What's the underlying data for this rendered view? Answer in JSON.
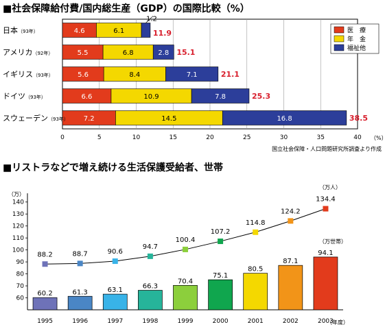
{
  "chart_data": [
    {
      "type": "bar",
      "orientation": "horizontal",
      "stacked": true,
      "title": "■社会保障給付費/国内総生産（GDP）の国際比較（%）",
      "categories": [
        {
          "name": "日本",
          "year": "（93年）"
        },
        {
          "name": "アメリカ",
          "year": "（92年）"
        },
        {
          "name": "イギリス",
          "year": "（93年）"
        },
        {
          "name": "ドイツ",
          "year": "（93年）"
        },
        {
          "name": "スウェーデン",
          "year": "（93年）"
        }
      ],
      "series": [
        {
          "name": "医　療",
          "color": "#e23b1c",
          "values": [
            4.6,
            5.5,
            5.6,
            6.6,
            7.2
          ]
        },
        {
          "name": "年　金",
          "color": "#f4d800",
          "values": [
            6.1,
            6.8,
            8.4,
            10.9,
            14.5
          ]
        },
        {
          "name": "福祉他",
          "color": "#2c3e9a",
          "values": [
            1.2,
            2.8,
            7.1,
            7.8,
            16.8
          ]
        }
      ],
      "totals": [
        11.9,
        15.1,
        21.1,
        25.3,
        38.5
      ],
      "xlim": [
        0,
        40
      ],
      "xticks": [
        0,
        5,
        10,
        15,
        20,
        25,
        30,
        35,
        40
      ],
      "xunit": "（%）",
      "legend_position": "top-right",
      "source": "国立社会保障・人口問題研究所調査より作成"
    },
    {
      "type": "bar+line",
      "title": "■リストラなどで増え続ける生活保護受給者、世帯",
      "categories": [
        "1995",
        "1996",
        "1997",
        "1998",
        "1999",
        "2000",
        "2001",
        "2002",
        "2003"
      ],
      "x_unit": "（年度）",
      "y_unit": "（万）",
      "ylim": [
        50,
        145
      ],
      "yticks": [
        60,
        70,
        80,
        90,
        100,
        110,
        120,
        130,
        140
      ],
      "line_series": {
        "name": "（万人）",
        "values": [
          88.2,
          88.7,
          90.6,
          94.7,
          100.4,
          107.2,
          114.8,
          124.2,
          134.4
        ],
        "marker_colors": [
          "#6e72b8",
          "#4a86c5",
          "#38b3e8",
          "#26b49a",
          "#8ccf3c",
          "#10a64e",
          "#f4d800",
          "#f29418",
          "#e23b1c"
        ]
      },
      "bar_series": {
        "name": "（万世帯）",
        "values": [
          60.2,
          61.3,
          63.1,
          66.3,
          70.4,
          75.1,
          80.5,
          87.1,
          94.1
        ],
        "colors": [
          "#6e72b8",
          "#4a86c5",
          "#38b3e8",
          "#26b49a",
          "#8ccf3c",
          "#10a64e",
          "#f4d800",
          "#f29418",
          "#e23b1c"
        ]
      }
    }
  ]
}
